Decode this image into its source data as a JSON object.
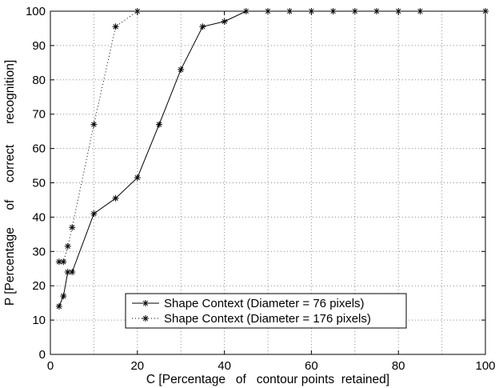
{
  "chart_data": {
    "type": "line",
    "xlabel": "C [Percentage   of   contour points  retained]",
    "ylabel": "P [Percentage     of     correct      recognition]",
    "xlim": [
      0,
      100
    ],
    "ylim": [
      0,
      100
    ],
    "x_ticks": [
      "0",
      "20",
      "40",
      "60",
      "80",
      "100"
    ],
    "y_ticks": [
      "0",
      "10",
      "20",
      "30",
      "40",
      "50",
      "60",
      "70",
      "80",
      "90",
      "100"
    ],
    "grid": true,
    "legend_position": "bottom-center",
    "series": [
      {
        "name": "Shape Context (Diameter = 76 pixels)",
        "line_style": "solid",
        "marker": "asterisk",
        "x": [
          2,
          3,
          4,
          5,
          10,
          15,
          20,
          25,
          30,
          35,
          40,
          45,
          50,
          55,
          60,
          65,
          70,
          75,
          80,
          85,
          100
        ],
        "y": [
          14,
          17,
          24,
          24,
          41,
          45.5,
          51.5,
          67,
          83,
          95.5,
          97,
          100,
          100,
          100,
          100,
          100,
          100,
          100,
          100,
          100,
          100
        ]
      },
      {
        "name": "Shape Context (Diameter = 176 pixels)",
        "line_style": "dotted",
        "marker": "asterisk",
        "x": [
          2,
          3,
          4,
          5,
          10,
          15,
          20
        ],
        "y": [
          27,
          27,
          31.5,
          37,
          67,
          95.5,
          100
        ]
      }
    ],
    "colors": {
      "line": "#000000",
      "grid": "#8c8c8c",
      "background": "#ffffff"
    }
  }
}
